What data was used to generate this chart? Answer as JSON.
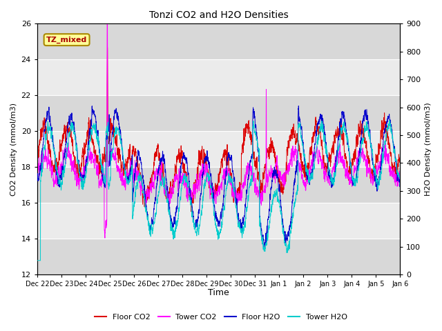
{
  "title": "Tonzi CO2 and H2O Densities",
  "xlabel": "Time",
  "ylabel_left": "CO2 Density (mmol/m3)",
  "ylabel_right": "H2O Density (mmol/m3)",
  "ylim_left": [
    12,
    26
  ],
  "ylim_right": [
    0,
    900
  ],
  "annotation_text": "TZ_mixed",
  "annotation_color": "#aa0000",
  "annotation_bg": "#ffff99",
  "annotation_border": "#aa8800",
  "colors": {
    "floor_co2": "#dd0000",
    "tower_co2": "#ff00ff",
    "floor_h2o": "#0000cc",
    "tower_h2o": "#00cccc"
  },
  "legend_labels": [
    "Floor CO2",
    "Tower CO2",
    "Floor H2O",
    "Tower H2O"
  ],
  "bg_color_light": "#ebebeb",
  "bg_color_dark": "#d8d8d8",
  "grid_color": "#ffffff",
  "tick_labels": [
    "Dec 22",
    "Dec 23",
    "Dec 24",
    "Dec 25",
    "Dec 26",
    "Dec 27",
    "Dec 28",
    "Dec 29",
    "Dec 30",
    "Dec 31",
    "Jan 1",
    "Jan 2",
    "Jan 3",
    "Jan 4",
    "Jan 5",
    "Jan 6"
  ],
  "n_points": 3360,
  "seed": 42
}
